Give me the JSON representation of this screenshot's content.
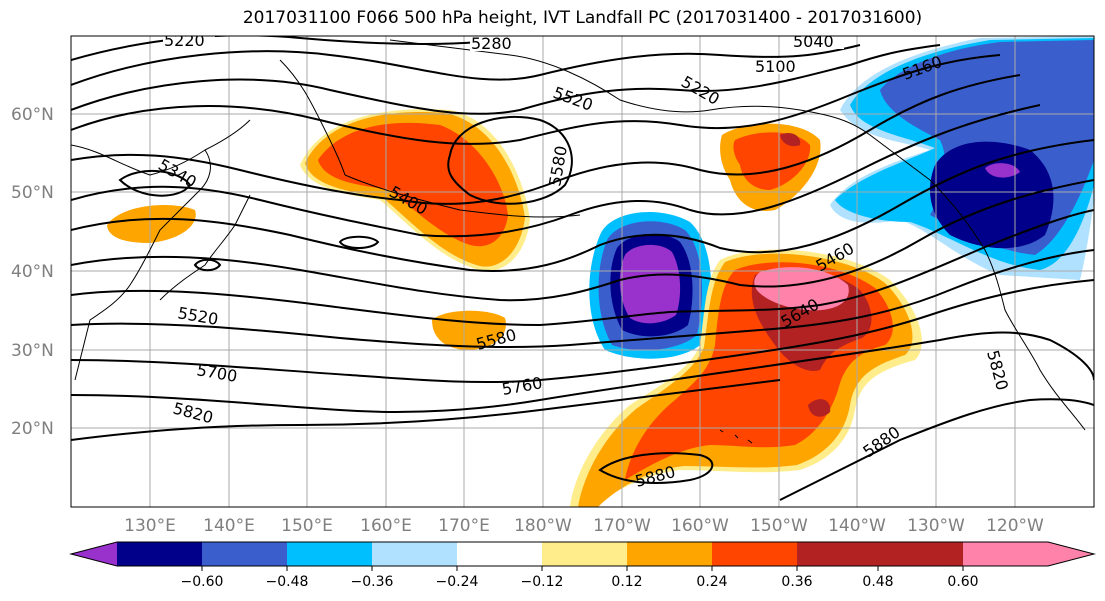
{
  "title": "2017031100 F066 500 hPa height, IVT Landfall PC (2017031400 - 2017031600)",
  "lat_labels": [
    "20°N",
    "30°N",
    "40°N",
    "50°N",
    "60°N"
  ],
  "lon_labels": [
    "130°E",
    "140°E",
    "150°E",
    "160°E",
    "170°E",
    "180°W",
    "170°W",
    "160°W",
    "150°W",
    "140°W",
    "130°W",
    "120°W"
  ],
  "contour_labels": [
    "5220",
    "5280",
    "5040",
    "5100",
    "5160",
    "5220",
    "5520",
    "5580",
    "5340",
    "5400",
    "5460",
    "5640",
    "5520",
    "5580",
    "5760",
    "5700",
    "5820",
    "5820",
    "5880",
    "5880"
  ],
  "colorbar": {
    "ticks": [
      "−0.60",
      "−0.48",
      "−0.36",
      "−0.24",
      "−0.12",
      "0.12",
      "0.24",
      "0.36",
      "0.48",
      "0.60"
    ],
    "colors": [
      "#9932cc",
      "#00008b",
      "#3a5fcd",
      "#00bfff",
      "#b0e2ff",
      "#ffffff",
      "#ffec8b",
      "#ffa500",
      "#ff4500",
      "#b22222",
      "#ff82ab"
    ]
  }
}
